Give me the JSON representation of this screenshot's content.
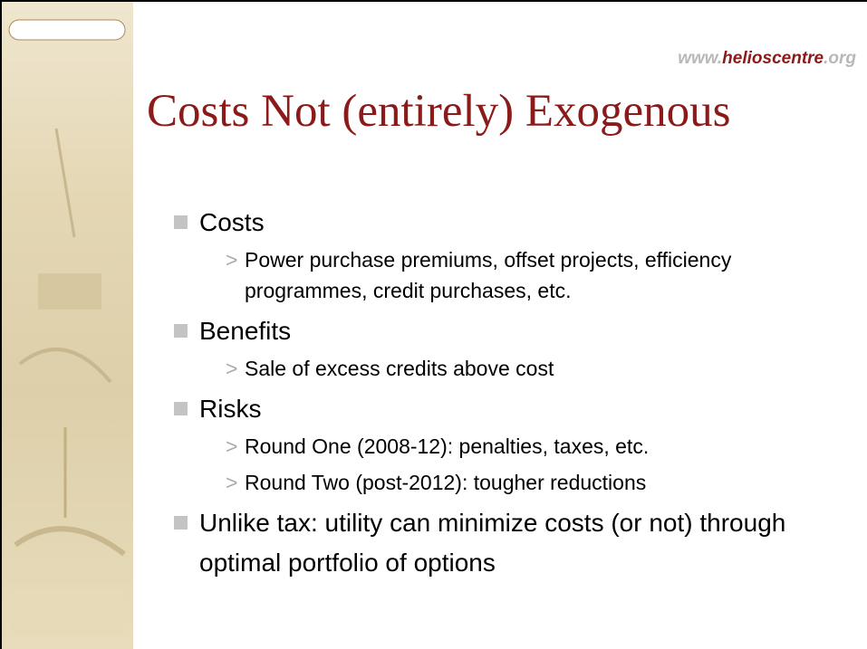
{
  "header": {
    "url": {
      "prefix": "www.",
      "name": "helioscentre",
      "suffix": ".org"
    }
  },
  "slide": {
    "title": "Costs Not (entirely) Exogenous",
    "bullets": [
      {
        "text": "Costs",
        "sub": [
          "Power purchase premiums, offset projects, efficiency programmes, credit purchases, etc."
        ]
      },
      {
        "text": "Benefits",
        "sub": [
          "Sale of excess credits above cost"
        ]
      },
      {
        "text": "Risks",
        "sub": [
          "Round One (2008-12): penalties, taxes, etc.",
          "Round Two (post-2012): tougher reductions"
        ]
      },
      {
        "text": "Unlike tax: utility can minimize costs (or not) through optimal portfolio of options",
        "sub": []
      }
    ]
  }
}
